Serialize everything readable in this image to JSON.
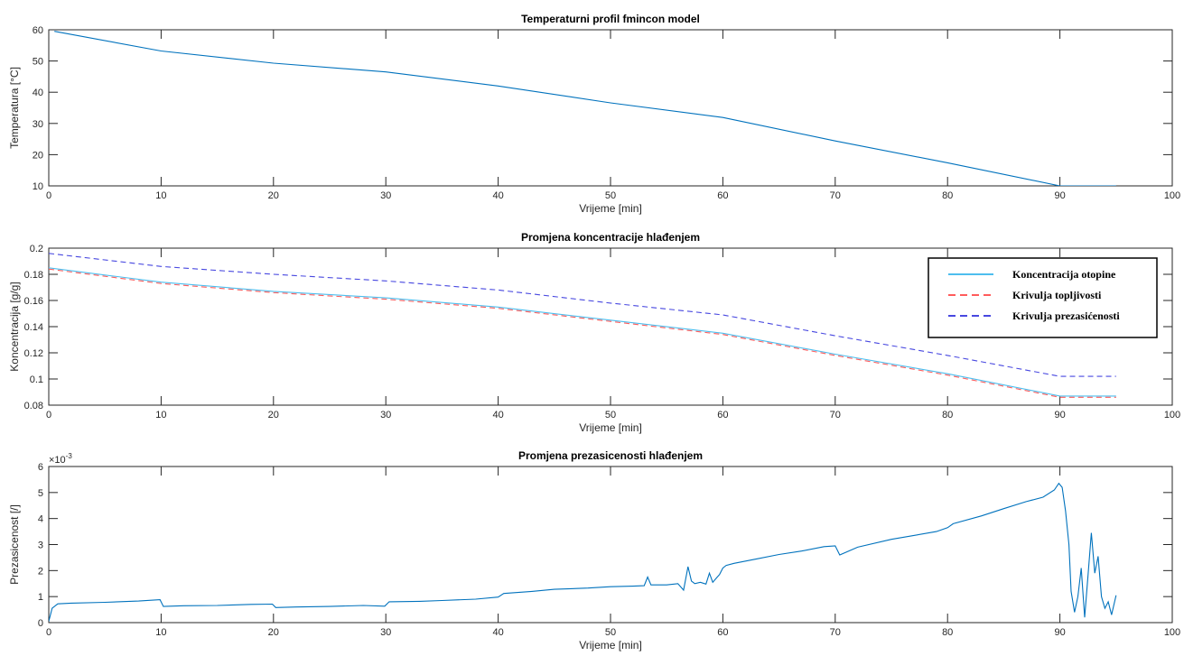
{
  "chart_data": [
    {
      "type": "line",
      "title": "Temperaturni profil fmincon model",
      "xlabel": "Vrijeme [min]",
      "ylabel": "Temperatura [°C]",
      "xlim": [
        0,
        100
      ],
      "ylim": [
        10,
        60
      ],
      "xticks": [
        "0",
        "10",
        "20",
        "30",
        "40",
        "50",
        "60",
        "70",
        "80",
        "90",
        "100"
      ],
      "yticks": [
        "10",
        "20",
        "30",
        "40",
        "50",
        "60"
      ],
      "series": [
        {
          "color": "#0072bd",
          "x": [
            0.5,
            10,
            20,
            30,
            40,
            50,
            60,
            70,
            80,
            90,
            95
          ],
          "y": [
            59.5,
            53.2,
            49.3,
            46.5,
            42.0,
            36.6,
            31.9,
            24.4,
            17.4,
            10.0,
            10.0
          ]
        }
      ]
    },
    {
      "type": "line",
      "title": "Promjena koncentracije hlađenjem",
      "xlabel": "Vrijeme [min]",
      "ylabel": "Koncentracija [g/g]",
      "xlim": [
        0,
        100
      ],
      "ylim": [
        0.08,
        0.2
      ],
      "xticks": [
        "0",
        "10",
        "20",
        "30",
        "40",
        "50",
        "60",
        "70",
        "80",
        "90",
        "100"
      ],
      "yticks": [
        "0.08",
        "0.1",
        "0.12",
        "0.14",
        "0.16",
        "0.18",
        "0.2"
      ],
      "legend_position": "top-right",
      "series": [
        {
          "name": "Koncentracija otopine",
          "color": "#4dbeee",
          "style": "solid",
          "x": [
            0,
            10,
            20,
            30,
            40,
            50,
            60,
            70,
            80,
            90,
            95
          ],
          "y": [
            0.185,
            0.174,
            0.167,
            0.162,
            0.155,
            0.145,
            0.135,
            0.119,
            0.104,
            0.087,
            0.087
          ]
        },
        {
          "name": "Krivulja topljivosti",
          "color": "#ff5c5c",
          "style": "dashed",
          "x": [
            0,
            10,
            20,
            30,
            40,
            50,
            60,
            70,
            80,
            90,
            95
          ],
          "y": [
            0.184,
            0.173,
            0.166,
            0.161,
            0.154,
            0.144,
            0.134,
            0.118,
            0.103,
            0.086,
            0.086
          ]
        },
        {
          "name": "Krivulja prezasićenosti",
          "color": "#4848e0",
          "style": "dashed",
          "x": [
            0,
            10,
            20,
            30,
            40,
            50,
            60,
            70,
            80,
            90,
            95
          ],
          "y": [
            0.196,
            0.186,
            0.18,
            0.175,
            0.168,
            0.158,
            0.149,
            0.133,
            0.118,
            0.102,
            0.102
          ]
        }
      ]
    },
    {
      "type": "line",
      "title": "Promjena prezasicenosti hlađenjem",
      "xlabel": "Vrijeme [min]",
      "ylabel": "Prezasicenost [/]",
      "axis_multiplier": "×10",
      "axis_multiplier_exp": "-3",
      "xlim": [
        0,
        100
      ],
      "ylim": [
        0,
        6
      ],
      "xticks": [
        "0",
        "10",
        "20",
        "30",
        "40",
        "50",
        "60",
        "70",
        "80",
        "90",
        "100"
      ],
      "yticks": [
        "0",
        "1",
        "2",
        "3",
        "4",
        "5",
        "6"
      ],
      "series": [
        {
          "color": "#0072bd",
          "x": [
            0,
            0.3,
            0.8,
            2,
            5,
            8,
            9.9,
            10.2,
            12,
            15,
            18,
            19.9,
            20.2,
            22,
            25,
            28,
            29.9,
            30.3,
            33,
            35,
            38,
            40,
            40.5,
            43,
            45,
            48,
            50,
            52,
            53,
            53.3,
            53.6,
            55,
            56,
            56.5,
            56.9,
            57.2,
            57.5,
            58,
            58.5,
            58.8,
            59.1,
            59.4,
            59.7,
            60,
            60.3,
            61,
            63,
            65,
            67,
            69,
            70,
            70.4,
            72,
            75,
            77,
            79,
            80,
            80.5,
            83,
            85,
            87,
            88.5,
            89.5,
            89.9,
            90.2,
            90.5,
            90.8,
            91,
            91.3,
            91.6,
            91.9,
            92.2,
            92.5,
            92.8,
            93.1,
            93.4,
            93.7,
            94,
            94.3,
            94.6,
            95
          ],
          "y": [
            0.05,
            0.55,
            0.72,
            0.75,
            0.78,
            0.83,
            0.88,
            0.62,
            0.65,
            0.66,
            0.7,
            0.71,
            0.58,
            0.6,
            0.62,
            0.66,
            0.63,
            0.8,
            0.82,
            0.85,
            0.9,
            0.98,
            1.12,
            1.2,
            1.28,
            1.33,
            1.38,
            1.4,
            1.42,
            1.75,
            1.45,
            1.45,
            1.5,
            1.25,
            2.15,
            1.6,
            1.5,
            1.55,
            1.48,
            1.9,
            1.55,
            1.7,
            1.85,
            2.1,
            2.2,
            2.28,
            2.45,
            2.62,
            2.75,
            2.92,
            2.95,
            2.6,
            2.9,
            3.2,
            3.35,
            3.5,
            3.65,
            3.8,
            4.1,
            4.38,
            4.65,
            4.82,
            5.1,
            5.35,
            5.2,
            4.3,
            3.0,
            1.2,
            0.4,
            1.0,
            2.1,
            0.2,
            1.8,
            3.45,
            1.9,
            2.55,
            1.0,
            0.55,
            0.8,
            0.3,
            1.05
          ]
        }
      ]
    }
  ]
}
